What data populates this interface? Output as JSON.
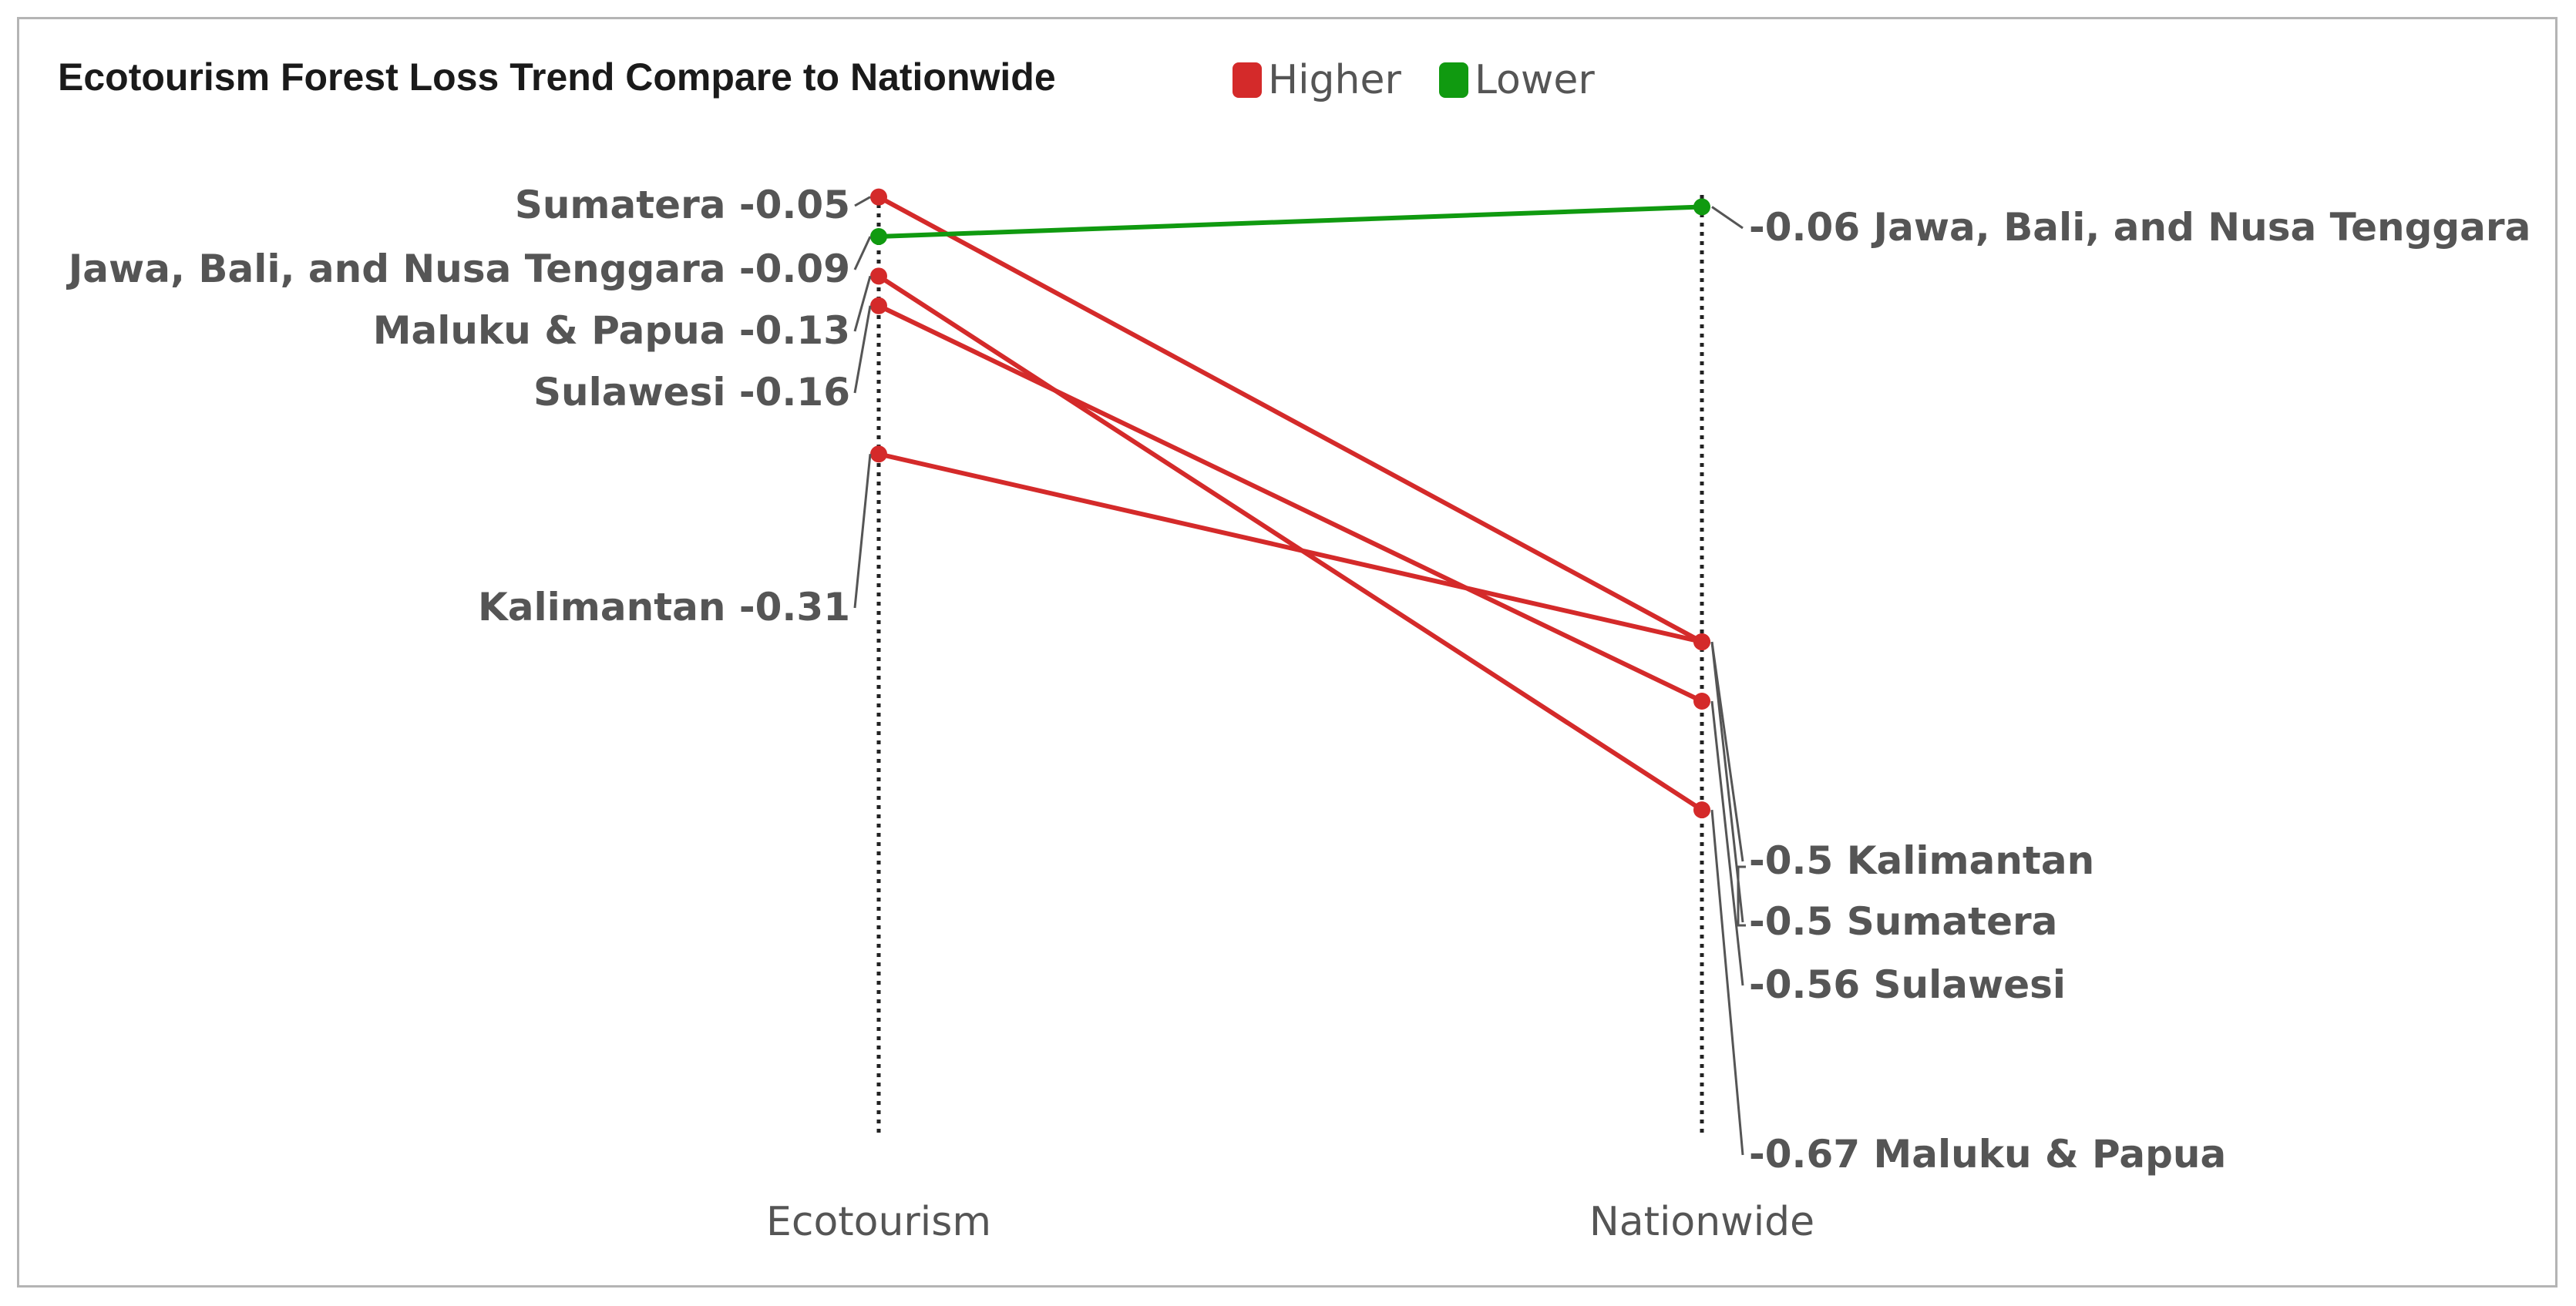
{
  "chart_data": {
    "type": "slope",
    "title": "Ecotourism Forest Loss Trend Compare to Nationwide",
    "categories": [
      "Ecotourism",
      "Nationwide"
    ],
    "legend": [
      {
        "label": "Higher",
        "color": "#d42a2a"
      },
      {
        "label": "Lower",
        "color": "#109a10"
      }
    ],
    "series": [
      {
        "name": "Sumatera",
        "values": [
          -0.05,
          -0.5
        ],
        "group": "Higher"
      },
      {
        "name": "Jawa, Bali, and Nusa Tenggara",
        "values": [
          -0.09,
          -0.06
        ],
        "group": "Lower"
      },
      {
        "name": "Maluku & Papua",
        "values": [
          -0.13,
          -0.67
        ],
        "group": "Higher"
      },
      {
        "name": "Sulawesi",
        "values": [
          -0.16,
          -0.56
        ],
        "group": "Higher"
      },
      {
        "name": "Kalimantan",
        "values": [
          -0.31,
          -0.5
        ],
        "group": "Higher"
      }
    ],
    "value_labels": {
      "Ecotourism": [
        "-0.05",
        "-0.09",
        "-0.13",
        "-0.16",
        "-0.31"
      ],
      "Nationwide": [
        "-0.5",
        "-0.06",
        "-0.67",
        "-0.56",
        "-0.5"
      ]
    },
    "grid": false
  }
}
